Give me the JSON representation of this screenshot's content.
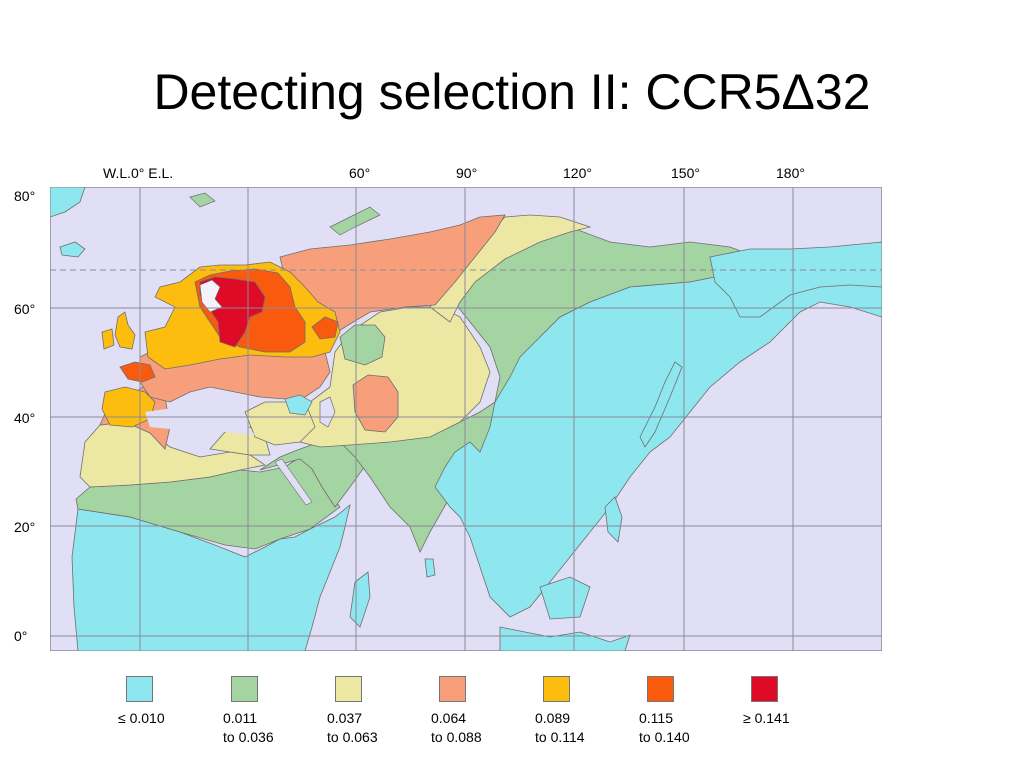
{
  "slide": {
    "title": "Detecting selection II:  CCR5Δ32"
  },
  "map": {
    "longitude_labels": [
      "W.L.0° E.L.",
      "60°",
      "90°",
      "120°",
      "150°",
      "180°"
    ],
    "latitude_labels": [
      "80°",
      "60°",
      "40°",
      "20°",
      "0°"
    ],
    "colors": {
      "ocean": "#e0dff5",
      "grid": "#8a8a9a",
      "border": "#6e6e6e"
    }
  },
  "legend": [
    {
      "line1": "≤ 0.010",
      "line2": "",
      "color": "#8ee6ee"
    },
    {
      "line1": "0.011",
      "line2": "to 0.036",
      "color": "#a5d4a3"
    },
    {
      "line1": "0.037",
      "line2": "to 0.063",
      "color": "#ece8a4"
    },
    {
      "line1": "0.064",
      "line2": "to 0.088",
      "color": "#f79f7b"
    },
    {
      "line1": "0.089",
      "line2": "to 0.114",
      "color": "#fdbd0f"
    },
    {
      "line1": "0.115",
      "line2": "to 0.140",
      "color": "#fa5a0e"
    },
    {
      "line1": "≥ 0.141",
      "line2": "",
      "color": "#de0a26"
    }
  ]
}
